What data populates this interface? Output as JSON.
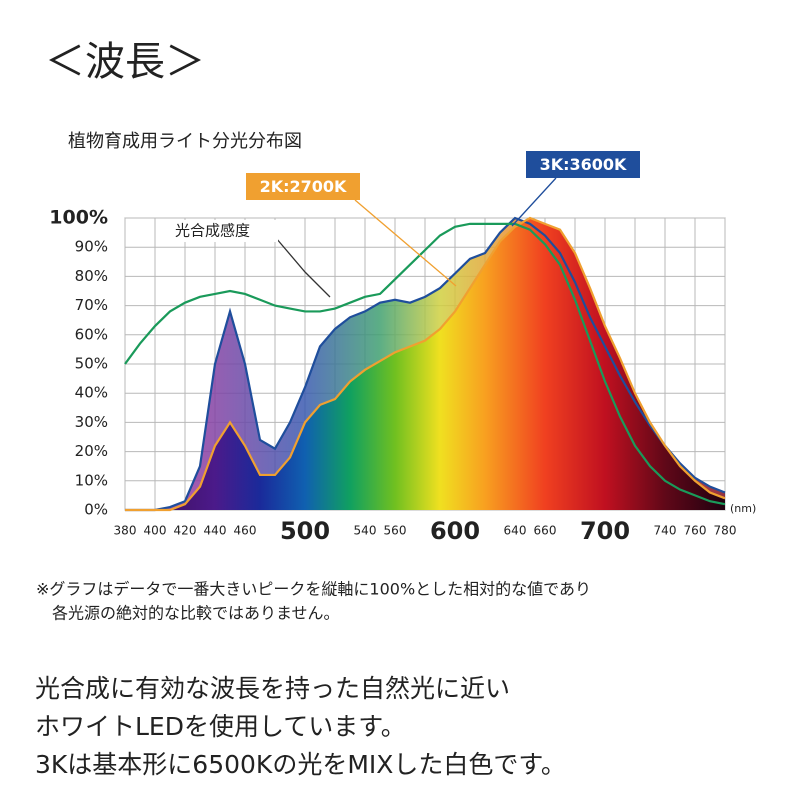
{
  "title": "＜波長＞",
  "chart_data": {
    "type": "area",
    "title": "植物育成用ライト分光分布図",
    "x_label": "(nm)",
    "x": [
      380,
      390,
      400,
      410,
      420,
      430,
      440,
      450,
      460,
      470,
      480,
      490,
      500,
      510,
      520,
      530,
      540,
      550,
      560,
      570,
      580,
      590,
      600,
      610,
      620,
      630,
      640,
      650,
      660,
      670,
      680,
      690,
      700,
      710,
      720,
      730,
      740,
      750,
      760,
      770,
      780
    ],
    "series": [
      {
        "name": "3K:3600K",
        "color": "#1f4e9c",
        "filled": true,
        "values": [
          0,
          0,
          0,
          1,
          3,
          15,
          50,
          68,
          50,
          24,
          21,
          30,
          42,
          56,
          62,
          66,
          68,
          71,
          72,
          71,
          73,
          76,
          81,
          86,
          88,
          95,
          100,
          98,
          94,
          88,
          78,
          66,
          56,
          46,
          37,
          29,
          22,
          16,
          11,
          8,
          6
        ]
      },
      {
        "name": "2K:2700K",
        "color": "#f0a030",
        "filled": true,
        "values": [
          0,
          0,
          0,
          0,
          2,
          8,
          22,
          30,
          22,
          12,
          12,
          18,
          30,
          36,
          38,
          44,
          48,
          51,
          54,
          56,
          58,
          62,
          68,
          76,
          84,
          92,
          97,
          100,
          98,
          96,
          88,
          76,
          63,
          52,
          40,
          30,
          22,
          15,
          10,
          6,
          4
        ]
      },
      {
        "name": "光合成感度",
        "color": "#1a9a5a",
        "filled": false,
        "values": [
          50,
          57,
          63,
          68,
          71,
          73,
          74,
          75,
          74,
          72,
          70,
          69,
          68,
          68,
          69,
          71,
          73,
          74,
          79,
          84,
          89,
          94,
          97,
          98,
          98,
          98,
          98,
          96,
          91,
          84,
          72,
          58,
          44,
          32,
          22,
          15,
          10,
          7,
          5,
          3,
          2
        ]
      }
    ],
    "xlim": [
      380,
      780
    ],
    "xticks": [
      380,
      400,
      420,
      440,
      460,
      540,
      560,
      640,
      660,
      740,
      760,
      780
    ],
    "xticks_major": [
      500,
      600,
      700
    ],
    "xgrid": [
      380,
      400,
      420,
      440,
      460,
      480,
      500,
      520,
      540,
      560,
      580,
      600,
      620,
      640,
      660,
      680,
      700,
      720,
      740,
      760,
      780
    ],
    "ylim": [
      0,
      100
    ],
    "yticks": [
      {
        "value": 0,
        "label": "0%"
      },
      {
        "value": 10,
        "label": "10%"
      },
      {
        "value": 20,
        "label": "20%"
      },
      {
        "value": 30,
        "label": "30%"
      },
      {
        "value": 40,
        "label": "40%"
      },
      {
        "value": 50,
        "label": "50%"
      },
      {
        "value": 60,
        "label": "60%"
      },
      {
        "value": 70,
        "label": "70%"
      },
      {
        "value": 80,
        "label": "80%"
      },
      {
        "value": 90,
        "label": "90%"
      },
      {
        "value": 100,
        "label": "100%"
      }
    ],
    "grid": true
  },
  "footnote": [
    "※グラフはデータで一番大きいピークを縦軸に100%とした相対的な値であり",
    "各光源の絶対的な比較ではありません。"
  ],
  "body": [
    "光合成に有効な波長を持った自然光に近い",
    "ホワイトLEDを使用しています。",
    "3Kは基本形に6500Kの光をMIXした白色です。"
  ]
}
